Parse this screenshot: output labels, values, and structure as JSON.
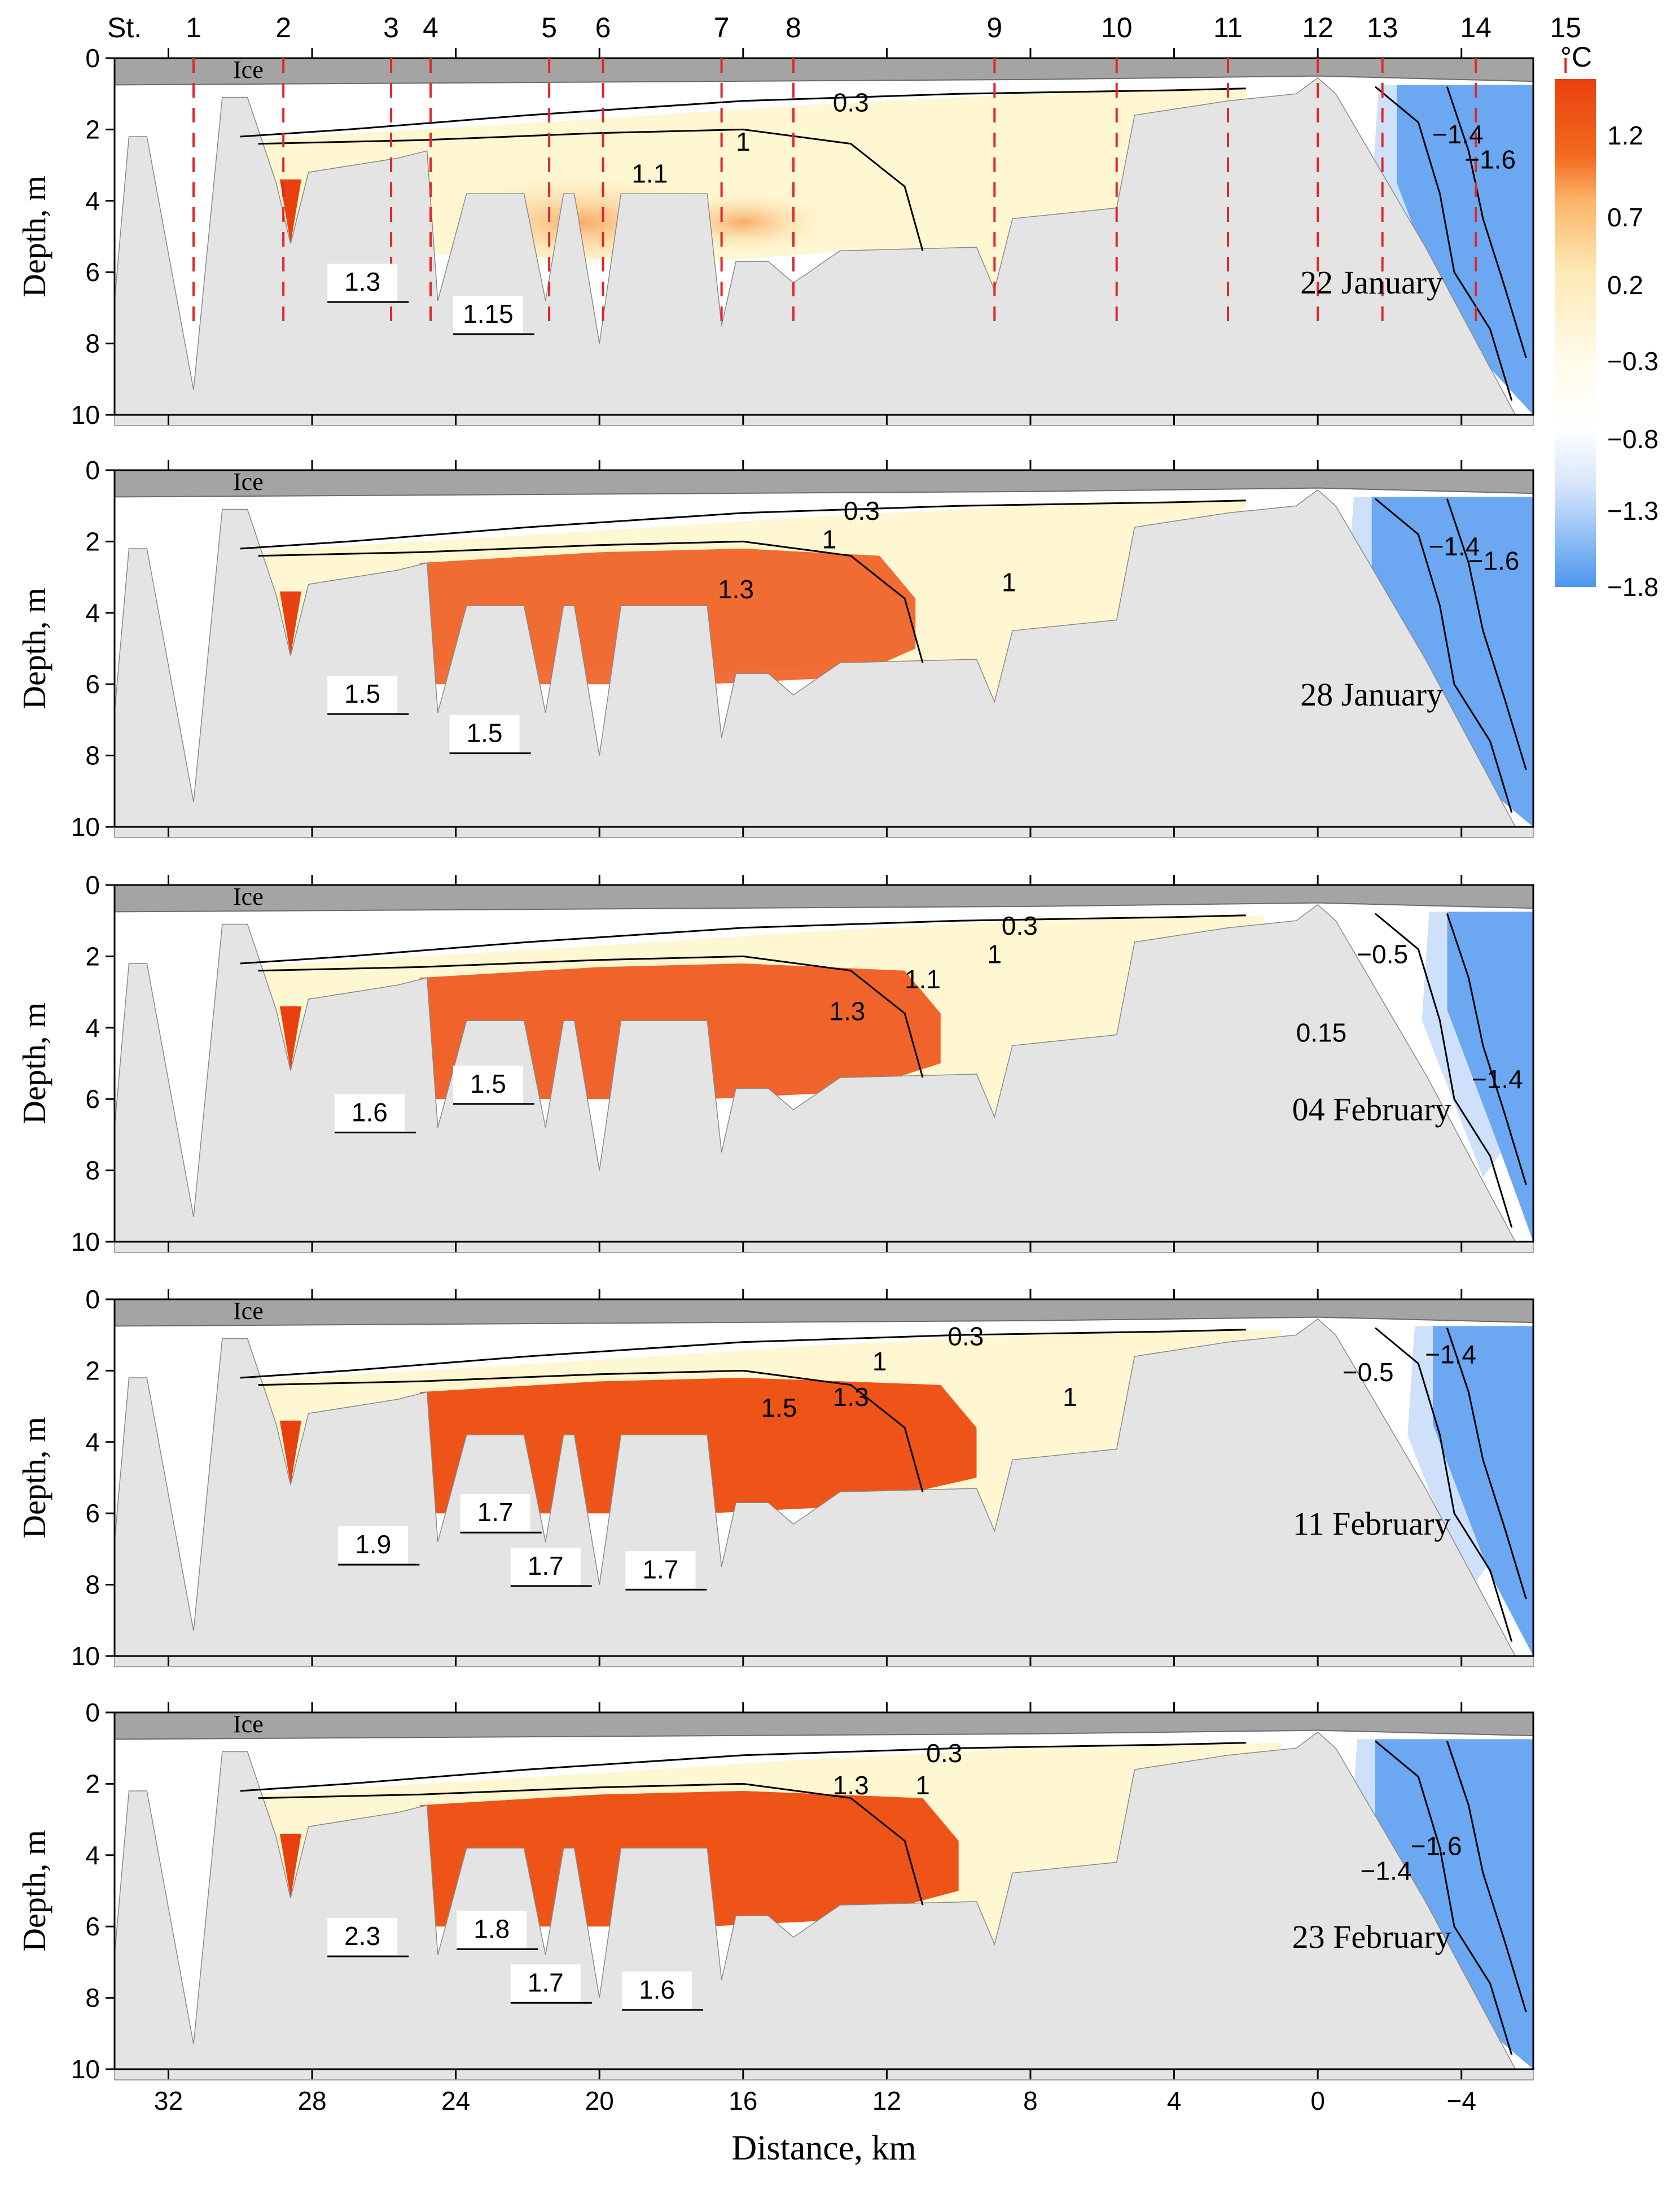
{
  "chart_data": {
    "type": "heatmap",
    "description_axis": {
      "xlabel": "Distance, km",
      "ylabel": "Depth, m",
      "xlim": [
        33.5,
        -6.0
      ],
      "ylim": [
        10,
        0
      ],
      "x_ticks": [
        32,
        28,
        24,
        20,
        16,
        12,
        8,
        4,
        0,
        -4
      ],
      "x_tick_labels": [
        "32",
        "28",
        "24",
        "20",
        "16",
        "12",
        "8",
        "4",
        "0",
        "−4"
      ],
      "y_ticks": [
        0,
        2,
        4,
        6,
        8,
        10
      ],
      "y_tick_labels": [
        "0",
        "2",
        "4",
        "6",
        "8",
        "10"
      ]
    },
    "stations": {
      "prefix": "St.",
      "labels": [
        "1",
        "2",
        "3",
        "4",
        "5",
        "6",
        "7",
        "8",
        "9",
        "10",
        "11",
        "12",
        "13",
        "14",
        "15"
      ],
      "x_km": [
        31.3,
        28.8,
        25.8,
        24.7,
        21.4,
        19.9,
        16.6,
        14.6,
        9.0,
        5.6,
        2.5,
        0.0,
        -1.8,
        -4.4,
        -6.9
      ]
    },
    "ice_label": "Ice",
    "colorbar": {
      "unit": "°C",
      "ticks": [
        "1.2",
        "0.7",
        "0.2",
        "−0.3",
        "−0.8",
        "−1.3",
        "−1.8"
      ],
      "tick_values": [
        1.2,
        0.7,
        0.2,
        -0.3,
        -0.8,
        -1.3,
        -1.8
      ],
      "colors": {
        "warm": "#e8400e",
        "neutral": "#fff7d6",
        "cold": "#4d96ee"
      }
    },
    "panels": [
      {
        "date": "22  January",
        "contours": [
          {
            "label": "0.3",
            "x": 13.0,
            "y": 1.3
          },
          {
            "label": "1",
            "x": 16.0,
            "y": 2.4
          },
          {
            "label": "1.1",
            "x": 18.6,
            "y": 3.3
          },
          {
            "label": "−1.4",
            "x": -3.9,
            "y": 2.2
          },
          {
            "label": "−1.6",
            "x": -4.8,
            "y": 2.9
          }
        ],
        "callouts": [
          {
            "label": "1.3",
            "x": 26.6,
            "y": 6.3
          },
          {
            "label": "1.15",
            "x": 23.1,
            "y": 7.2
          }
        ]
      },
      {
        "date": "28 January",
        "contours": [
          {
            "label": "0.3",
            "x": 12.7,
            "y": 1.2
          },
          {
            "label": "1",
            "x": 13.6,
            "y": 2.0
          },
          {
            "label": "1.3",
            "x": 16.2,
            "y": 3.4
          },
          {
            "label": "1",
            "x": 8.6,
            "y": 3.2
          },
          {
            "label": "−1.4",
            "x": -3.8,
            "y": 2.2
          },
          {
            "label": "−1.6",
            "x": -4.9,
            "y": 2.6
          }
        ],
        "callouts": [
          {
            "label": "1.5",
            "x": 26.6,
            "y": 6.3
          },
          {
            "label": "1.5",
            "x": 23.2,
            "y": 7.4
          }
        ]
      },
      {
        "date": "04 February",
        "contours": [
          {
            "label": "0.3",
            "x": 8.3,
            "y": 1.2
          },
          {
            "label": "1",
            "x": 9.0,
            "y": 2.0
          },
          {
            "label": "1.1",
            "x": 11.0,
            "y": 2.7
          },
          {
            "label": "1.3",
            "x": 13.1,
            "y": 3.6
          },
          {
            "label": "−0.5",
            "x": -1.8,
            "y": 2.0
          },
          {
            "label": "0.15",
            "x": -0.1,
            "y": 4.2
          },
          {
            "label": "−1.4",
            "x": -5.0,
            "y": 5.5
          }
        ],
        "callouts": [
          {
            "label": "1.6",
            "x": 26.4,
            "y": 6.4
          },
          {
            "label": "1.5",
            "x": 23.1,
            "y": 5.6
          }
        ]
      },
      {
        "date": "11 February",
        "contours": [
          {
            "label": "0.3",
            "x": 9.8,
            "y": 1.1
          },
          {
            "label": "1",
            "x": 12.2,
            "y": 1.8
          },
          {
            "label": "1.3",
            "x": 13.0,
            "y": 2.8
          },
          {
            "label": "1.5",
            "x": 15.0,
            "y": 3.1
          },
          {
            "label": "1",
            "x": 6.9,
            "y": 2.8
          },
          {
            "label": "−0.5",
            "x": -1.4,
            "y": 2.1
          },
          {
            "label": "−1.4",
            "x": -3.7,
            "y": 1.6
          }
        ],
        "callouts": [
          {
            "label": "1.9",
            "x": 26.3,
            "y": 6.9
          },
          {
            "label": "1.7",
            "x": 22.9,
            "y": 6.0
          },
          {
            "label": "1.7",
            "x": 21.5,
            "y": 7.5
          },
          {
            "label": "1.7",
            "x": 18.3,
            "y": 7.6
          }
        ]
      },
      {
        "date": "23 February",
        "contours": [
          {
            "label": "0.3",
            "x": 10.4,
            "y": 1.2
          },
          {
            "label": "1.3",
            "x": 13.0,
            "y": 2.1
          },
          {
            "label": "1",
            "x": 11.0,
            "y": 2.1
          },
          {
            "label": "−1.6",
            "x": -3.3,
            "y": 3.8
          },
          {
            "label": "−1.4",
            "x": -1.9,
            "y": 4.5
          }
        ],
        "callouts": [
          {
            "label": "2.3",
            "x": 26.6,
            "y": 6.3
          },
          {
            "label": "1.8",
            "x": 23.0,
            "y": 6.1
          },
          {
            "label": "1.7",
            "x": 21.5,
            "y": 7.6
          },
          {
            "label": "1.6",
            "x": 18.4,
            "y": 7.8
          }
        ]
      }
    ]
  }
}
